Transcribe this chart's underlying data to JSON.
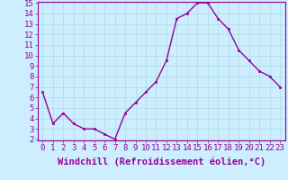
{
  "x": [
    0,
    1,
    2,
    3,
    4,
    5,
    6,
    7,
    8,
    9,
    10,
    11,
    12,
    13,
    14,
    15,
    16,
    17,
    18,
    19,
    20,
    21,
    22,
    23
  ],
  "y": [
    6.5,
    3.5,
    4.5,
    3.5,
    3.0,
    3.0,
    2.5,
    2.0,
    4.5,
    5.5,
    6.5,
    7.5,
    9.5,
    13.5,
    14.0,
    15.0,
    15.0,
    13.5,
    12.5,
    10.5,
    9.5,
    8.5,
    8.0,
    7.0
  ],
  "line_color": "#990099",
  "marker": "s",
  "marker_size": 2,
  "xlabel": "Windchill (Refroidissement éolien,°C)",
  "xlabel_fontsize": 7.5,
  "ylim": [
    2,
    15
  ],
  "xlim": [
    -0.5,
    23.5
  ],
  "yticks": [
    2,
    3,
    4,
    5,
    6,
    7,
    8,
    9,
    10,
    11,
    12,
    13,
    14,
    15
  ],
  "xticks": [
    0,
    1,
    2,
    3,
    4,
    5,
    6,
    7,
    8,
    9,
    10,
    11,
    12,
    13,
    14,
    15,
    16,
    17,
    18,
    19,
    20,
    21,
    22,
    23
  ],
  "grid_color": "#aadddd",
  "background_color": "#cceeff",
  "tick_color": "#990099",
  "tick_fontsize": 6.5,
  "line_width": 1.0,
  "spine_color": "#990099"
}
